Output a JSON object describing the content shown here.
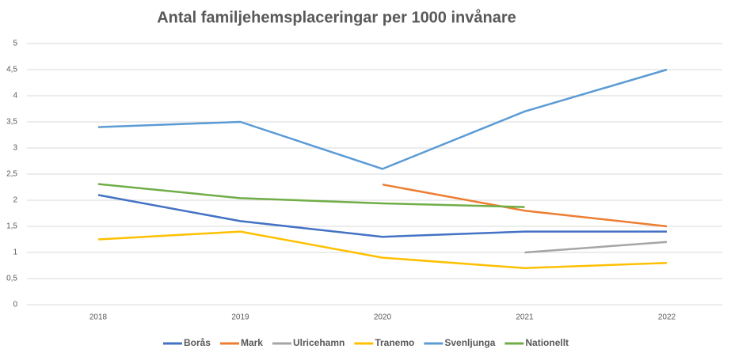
{
  "chart_data": {
    "type": "line",
    "title": "Antal familjehemsplaceringar per 1000 invånare",
    "categories": [
      "2018",
      "2019",
      "2020",
      "2021",
      "2022"
    ],
    "series": [
      {
        "name": "Borås",
        "color": "#4472c4",
        "values": [
          2.1,
          1.6,
          1.3,
          1.4,
          1.4
        ]
      },
      {
        "name": "Mark",
        "color": "#ed7d31",
        "values": [
          null,
          null,
          2.3,
          1.8,
          1.5
        ]
      },
      {
        "name": "Ulricehamn",
        "color": "#a5a5a5",
        "values": [
          null,
          null,
          null,
          1.0,
          1.2
        ]
      },
      {
        "name": "Tranemo",
        "color": "#ffc000",
        "values": [
          1.25,
          1.4,
          0.9,
          0.7,
          0.8
        ]
      },
      {
        "name": "Svenljunga",
        "color": "#5b9bd5",
        "values": [
          3.4,
          3.5,
          2.6,
          3.7,
          4.5
        ]
      },
      {
        "name": "Nationellt",
        "color": "#70ad47",
        "values": [
          2.31,
          2.04,
          1.94,
          1.87,
          null
        ]
      }
    ],
    "ylim": [
      0,
      5
    ],
    "yticks": [
      0,
      {
        "value": 0.5,
        "label": "0,5"
      },
      1,
      {
        "value": 1.5,
        "label": "1,5"
      },
      2,
      {
        "value": 2.5,
        "label": "2,5"
      },
      3,
      {
        "value": 3.5,
        "label": "3,5"
      },
      4,
      {
        "value": 4.5,
        "label": "4,5"
      },
      5
    ],
    "grid": true,
    "legend": "bottom"
  }
}
